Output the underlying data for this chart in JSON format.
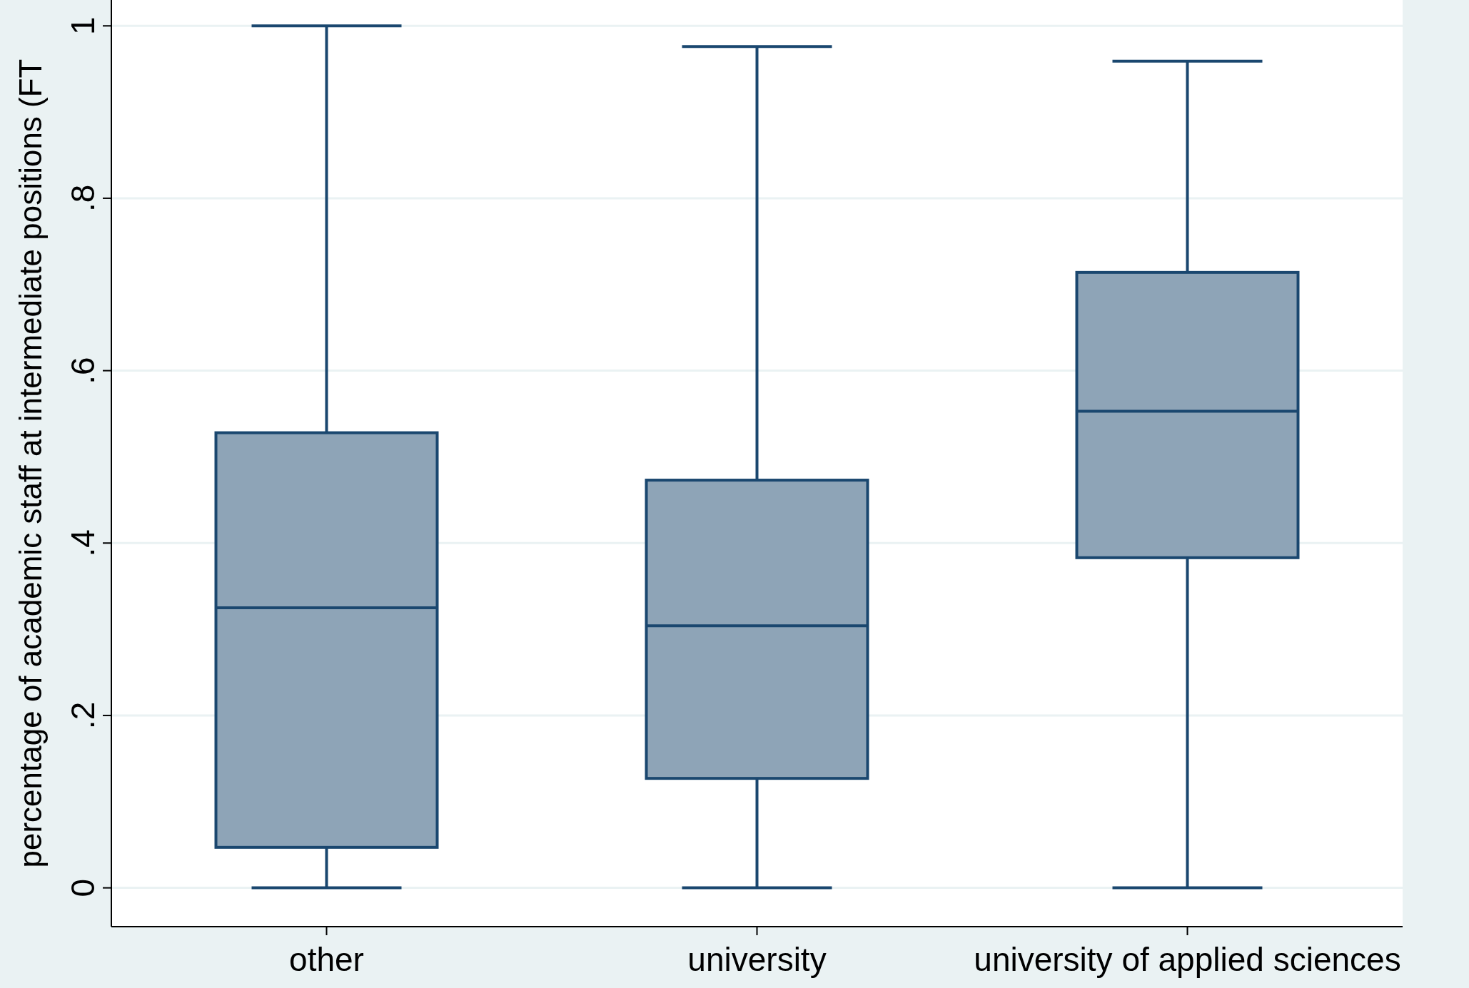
{
  "chart_data": {
    "type": "box",
    "ylabel": "percentage of academic staff at intermediate positions (FT",
    "categories": [
      "other",
      "university",
      "university of applied sciences"
    ],
    "boxes": [
      {
        "low": 0,
        "q1": 0.047,
        "median": 0.325,
        "q3": 0.528,
        "high": 1
      },
      {
        "low": 0,
        "q1": 0.127,
        "median": 0.304,
        "q3": 0.473,
        "high": 0.976
      },
      {
        "low": 0,
        "q1": 0.383,
        "median": 0.553,
        "q3": 0.714,
        "high": 0.959
      }
    ],
    "color": "#8ea4b7",
    "ylim": [
      -0.045,
      1.03
    ],
    "yticks": [
      {
        "value": 0,
        "label": "0"
      },
      {
        "value": 0.2,
        "label": ".2"
      },
      {
        "value": 0.4,
        "label": ".4"
      },
      {
        "value": 0.6,
        "label": ".6"
      },
      {
        "value": 0.8,
        "label": ".8"
      },
      {
        "value": 1,
        "label": "1"
      }
    ],
    "grid": "y"
  }
}
